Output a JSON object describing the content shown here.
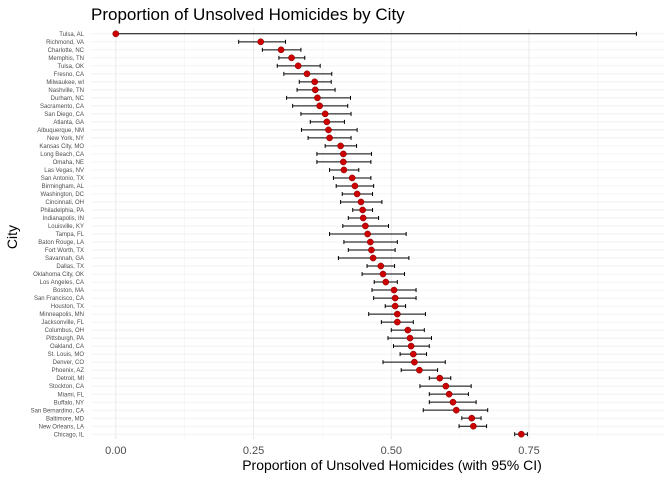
{
  "chart_data": {
    "type": "scatter",
    "title": "Proportion of Unsolved Homicides by City",
    "xlabel": "Proportion of Unsolved Homicides (with 95% CI)",
    "ylabel": "City",
    "xlim": [
      -0.045,
      0.995
    ],
    "x_ticks": [
      0.0,
      0.25,
      0.5,
      0.75
    ],
    "x_tick_labels": [
      "0.00",
      "0.25",
      "0.50",
      "0.75"
    ],
    "grid": true,
    "legend": "none",
    "colors": {
      "point": "#cc0000",
      "point_outline": "#7a0000",
      "errorbar": "#000000",
      "grid_major": "#ebebeb",
      "grid_minor": "#f5f5f5"
    },
    "points": [
      {
        "city": "Tulsa, AL",
        "estimate": 0.0,
        "lower": 0.0,
        "upper": 0.945
      },
      {
        "city": "Richmond, VA",
        "estimate": 0.263,
        "lower": 0.223,
        "upper": 0.308
      },
      {
        "city": "Charlotte, NC",
        "estimate": 0.3,
        "lower": 0.266,
        "upper": 0.336
      },
      {
        "city": "Memphis, TN",
        "estimate": 0.319,
        "lower": 0.296,
        "upper": 0.343
      },
      {
        "city": "Tulsa, OK",
        "estimate": 0.331,
        "lower": 0.293,
        "upper": 0.371
      },
      {
        "city": "Fresno, CA",
        "estimate": 0.347,
        "lower": 0.305,
        "upper": 0.392
      },
      {
        "city": "Milwaukee, wI",
        "estimate": 0.361,
        "lower": 0.333,
        "upper": 0.391
      },
      {
        "city": "Nashville, TN",
        "estimate": 0.362,
        "lower": 0.329,
        "upper": 0.398
      },
      {
        "city": "Durham, NC",
        "estimate": 0.366,
        "lower": 0.31,
        "upper": 0.426
      },
      {
        "city": "Sacramento, CA",
        "estimate": 0.37,
        "lower": 0.321,
        "upper": 0.421
      },
      {
        "city": "San Diego, CA",
        "estimate": 0.38,
        "lower": 0.336,
        "upper": 0.427
      },
      {
        "city": "Atlanta, GA",
        "estimate": 0.383,
        "lower": 0.353,
        "upper": 0.415
      },
      {
        "city": "Albuquerque, NM",
        "estimate": 0.386,
        "lower": 0.337,
        "upper": 0.438
      },
      {
        "city": "New York, NY",
        "estimate": 0.388,
        "lower": 0.349,
        "upper": 0.427
      },
      {
        "city": "Kansas City, MO",
        "estimate": 0.408,
        "lower": 0.38,
        "upper": 0.437
      },
      {
        "city": "Long Beach, CA",
        "estimate": 0.413,
        "lower": 0.365,
        "upper": 0.464
      },
      {
        "city": "Omaha, NE",
        "estimate": 0.413,
        "lower": 0.365,
        "upper": 0.463
      },
      {
        "city": "Las Vegas, NV",
        "estimate": 0.414,
        "lower": 0.388,
        "upper": 0.441
      },
      {
        "city": "San Antonio, TX",
        "estimate": 0.429,
        "lower": 0.395,
        "upper": 0.463
      },
      {
        "city": "Birmingham, AL",
        "estimate": 0.434,
        "lower": 0.4,
        "upper": 0.468
      },
      {
        "city": "Washington, DC",
        "estimate": 0.438,
        "lower": 0.411,
        "upper": 0.466
      },
      {
        "city": "Cincinnati, OH",
        "estimate": 0.445,
        "lower": 0.408,
        "upper": 0.483
      },
      {
        "city": "Philadelphia, PA",
        "estimate": 0.448,
        "lower": 0.43,
        "upper": 0.466
      },
      {
        "city": "Indianapolis, IN",
        "estimate": 0.449,
        "lower": 0.422,
        "upper": 0.477
      },
      {
        "city": "Louisville, KY",
        "estimate": 0.453,
        "lower": 0.412,
        "upper": 0.495
      },
      {
        "city": "Tampa, FL",
        "estimate": 0.457,
        "lower": 0.388,
        "upper": 0.527
      },
      {
        "city": "Baton Rouge, LA",
        "estimate": 0.462,
        "lower": 0.414,
        "upper": 0.511
      },
      {
        "city": "Fort Worth, TX",
        "estimate": 0.464,
        "lower": 0.422,
        "upper": 0.507
      },
      {
        "city": "Savannah, GA",
        "estimate": 0.467,
        "lower": 0.404,
        "upper": 0.532
      },
      {
        "city": "Dallas, TX",
        "estimate": 0.481,
        "lower": 0.456,
        "upper": 0.506
      },
      {
        "city": "Oklahoma City, OK",
        "estimate": 0.485,
        "lower": 0.447,
        "upper": 0.524
      },
      {
        "city": "Los Angeles, CA",
        "estimate": 0.49,
        "lower": 0.469,
        "upper": 0.511
      },
      {
        "city": "Boston, MA",
        "estimate": 0.505,
        "lower": 0.465,
        "upper": 0.545
      },
      {
        "city": "San Francisco, CA",
        "estimate": 0.507,
        "lower": 0.468,
        "upper": 0.545
      },
      {
        "city": "Houston, TX",
        "estimate": 0.507,
        "lower": 0.489,
        "upper": 0.526
      },
      {
        "city": "Minneapolis, MN",
        "estimate": 0.511,
        "lower": 0.459,
        "upper": 0.562
      },
      {
        "city": "Jacksonville, FL",
        "estimate": 0.511,
        "lower": 0.482,
        "upper": 0.54
      },
      {
        "city": "Columbus, OH",
        "estimate": 0.53,
        "lower": 0.5,
        "upper": 0.56
      },
      {
        "city": "Pittsburgh, PA",
        "estimate": 0.534,
        "lower": 0.494,
        "upper": 0.573
      },
      {
        "city": "Oakland, CA",
        "estimate": 0.536,
        "lower": 0.504,
        "upper": 0.569
      },
      {
        "city": "St. Louis, MO",
        "estimate": 0.54,
        "lower": 0.516,
        "upper": 0.564
      },
      {
        "city": "Denver, CO",
        "estimate": 0.542,
        "lower": 0.485,
        "upper": 0.598
      },
      {
        "city": "Phoenix, AZ",
        "estimate": 0.551,
        "lower": 0.518,
        "upper": 0.584
      },
      {
        "city": "Detroit, MI",
        "estimate": 0.588,
        "lower": 0.569,
        "upper": 0.608
      },
      {
        "city": "Stockton, CA",
        "estimate": 0.599,
        "lower": 0.552,
        "upper": 0.645
      },
      {
        "city": "Miami, FL",
        "estimate": 0.605,
        "lower": 0.569,
        "upper": 0.64
      },
      {
        "city": "Buffalo, NY",
        "estimate": 0.612,
        "lower": 0.569,
        "upper": 0.654
      },
      {
        "city": "San Bernardino, CA",
        "estimate": 0.618,
        "lower": 0.558,
        "upper": 0.675
      },
      {
        "city": "Baltimore, MD",
        "estimate": 0.646,
        "lower": 0.628,
        "upper": 0.663
      },
      {
        "city": "New Orleans, LA",
        "estimate": 0.649,
        "lower": 0.623,
        "upper": 0.673
      },
      {
        "city": "Chicago, IL",
        "estimate": 0.736,
        "lower": 0.724,
        "upper": 0.747
      }
    ]
  }
}
